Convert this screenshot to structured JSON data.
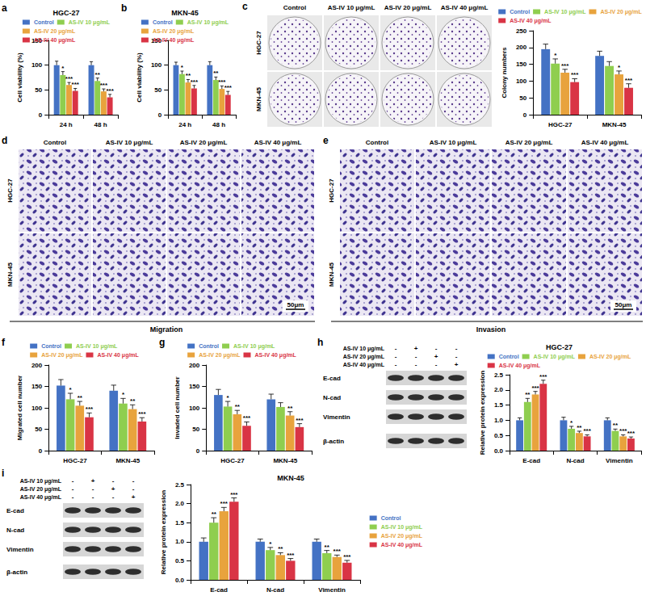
{
  "chart_data": [
    {
      "type": "bar",
      "panel": "a",
      "title": "HGC-27",
      "y_label": "Cell viability (%)",
      "categories": [
        "24 h",
        "48 h"
      ],
      "series": [
        {
          "name": "Control",
          "color": "#4472c4",
          "values": [
            100,
            100
          ],
          "errors": [
            8,
            7
          ],
          "significance": [
            null,
            null
          ]
        },
        {
          "name": "AS-IV 10 μg/mL",
          "color": "#8fce4f",
          "values": [
            80,
            68
          ],
          "errors": [
            7,
            6
          ],
          "significance": [
            "*",
            "**"
          ]
        },
        {
          "name": "AS-IV 20 μg/mL",
          "color": "#e8a33d",
          "values": [
            60,
            47
          ],
          "errors": [
            5,
            5
          ],
          "significance": [
            "***",
            "***"
          ]
        },
        {
          "name": "AS-IV 40 μg/mL",
          "color": "#d93445",
          "values": [
            48,
            35
          ],
          "errors": [
            5,
            6
          ],
          "significance": [
            "***",
            "***"
          ]
        }
      ],
      "ylim": [
        0,
        150
      ],
      "yticks": [
        0,
        50,
        100,
        150
      ],
      "grid": false,
      "legend": "top"
    },
    {
      "type": "bar",
      "panel": "b",
      "title": "MKN-45",
      "y_label": "Cell viability (%)",
      "categories": [
        "24 h",
        "48 h"
      ],
      "series": [
        {
          "name": "Control",
          "color": "#4472c4",
          "values": [
            100,
            100
          ],
          "errors": [
            6,
            7
          ],
          "significance": [
            null,
            null
          ]
        },
        {
          "name": "AS-IV 10 μg/mL",
          "color": "#8fce4f",
          "values": [
            82,
            70
          ],
          "errors": [
            6,
            6
          ],
          "significance": [
            "*",
            "**"
          ]
        },
        {
          "name": "AS-IV 20 μg/mL",
          "color": "#e8a33d",
          "values": [
            65,
            52
          ],
          "errors": [
            6,
            6
          ],
          "significance": [
            "**",
            "***"
          ]
        },
        {
          "name": "AS-IV 40 μg/mL",
          "color": "#d93445",
          "values": [
            53,
            40
          ],
          "errors": [
            6,
            7
          ],
          "significance": [
            "***",
            "***"
          ]
        }
      ],
      "ylim": [
        0,
        150
      ],
      "yticks": [
        0,
        50,
        100,
        150
      ],
      "grid": false,
      "legend": "top"
    },
    {
      "type": "bar",
      "y_label": "Colony numbers",
      "categories": [
        "HGC-27",
        "MKN-45"
      ],
      "series": [
        {
          "name": "Control",
          "color": "#4472c4",
          "values": [
            195,
            175
          ],
          "errors": [
            15,
            14
          ],
          "significance": [
            null,
            null
          ]
        },
        {
          "name": "AS-IV 10 μg/mL",
          "color": "#8fce4f",
          "values": [
            152,
            145
          ],
          "errors": [
            14,
            13
          ],
          "significance": [
            "*",
            null
          ]
        },
        {
          "name": "AS-IV 20 μg/mL",
          "color": "#e8a33d",
          "values": [
            125,
            120
          ],
          "errors": [
            10,
            10
          ],
          "significance": [
            "***",
            "*"
          ]
        },
        {
          "name": "AS-IV 40 μg/mL",
          "color": "#d93445",
          "values": [
            97,
            80
          ],
          "errors": [
            10,
            12
          ],
          "significance": [
            "***",
            "***"
          ]
        }
      ],
      "ylim": [
        0,
        250
      ],
      "yticks": [
        0,
        50,
        100,
        150,
        200,
        250
      ],
      "grid": false,
      "legend": "top"
    },
    {
      "type": "bar",
      "panel": "f",
      "y_label": "Migrated cell number",
      "categories": [
        "HGC-27",
        "MKN-45"
      ],
      "series": [
        {
          "name": "Control",
          "color": "#4472c4",
          "values": [
            152,
            140
          ],
          "errors": [
            14,
            13
          ],
          "significance": [
            null,
            null
          ]
        },
        {
          "name": "AS-IV 10 μg/mL",
          "color": "#8fce4f",
          "values": [
            120,
            110
          ],
          "errors": [
            14,
            12
          ],
          "significance": [
            "*",
            "*"
          ]
        },
        {
          "name": "AS-IV 20 μg/mL",
          "color": "#e8a33d",
          "values": [
            105,
            97
          ],
          "errors": [
            10,
            10
          ],
          "significance": [
            "**",
            "**"
          ]
        },
        {
          "name": "AS-IV 40 μg/mL",
          "color": "#d93445",
          "values": [
            78,
            68
          ],
          "errors": [
            10,
            9
          ],
          "significance": [
            "***",
            "***"
          ]
        }
      ],
      "ylim": [
        0,
        200
      ],
      "yticks": [
        0,
        50,
        100,
        150,
        200
      ],
      "grid": false,
      "legend": "top"
    },
    {
      "type": "bar",
      "panel": "g",
      "y_label": "Invaded cell number",
      "categories": [
        "HGC-27",
        "MKN-45"
      ],
      "series": [
        {
          "name": "Control",
          "color": "#4472c4",
          "values": [
            130,
            120
          ],
          "errors": [
            13,
            12
          ],
          "significance": [
            null,
            null
          ]
        },
        {
          "name": "AS-IV 10 μg/mL",
          "color": "#8fce4f",
          "values": [
            103,
            102
          ],
          "errors": [
            12,
            10
          ],
          "significance": [
            "*",
            null
          ]
        },
        {
          "name": "AS-IV 20 μg/mL",
          "color": "#e8a33d",
          "values": [
            85,
            82
          ],
          "errors": [
            9,
            9
          ],
          "significance": [
            "**",
            "**"
          ]
        },
        {
          "name": "AS-IV 40 μg/mL",
          "color": "#d93445",
          "values": [
            58,
            55
          ],
          "errors": [
            9,
            8
          ],
          "significance": [
            "***",
            "***"
          ]
        }
      ],
      "ylim": [
        0,
        200
      ],
      "yticks": [
        0,
        50,
        100,
        150,
        200
      ],
      "grid": false,
      "legend": "top"
    },
    {
      "type": "bar",
      "title": "HGC-27",
      "y_label": "Relative protein expression",
      "categories": [
        "E-cad",
        "N-cad",
        "Vimentin"
      ],
      "series": [
        {
          "name": "Control",
          "color": "#4472c4",
          "values": [
            1,
            1,
            1
          ],
          "errors": [
            0.08,
            0.1,
            0.08
          ],
          "significance": [
            null,
            null,
            null
          ]
        },
        {
          "name": "AS-IV 10 μg/mL",
          "color": "#8fce4f",
          "values": [
            1.6,
            0.72,
            0.65
          ],
          "errors": [
            0.12,
            0.08,
            0.06
          ],
          "significance": [
            "**",
            "*",
            "**"
          ]
        },
        {
          "name": "AS-IV 20 μg/mL",
          "color": "#e8a33d",
          "values": [
            1.85,
            0.58,
            0.47
          ],
          "errors": [
            0.1,
            0.06,
            0.05
          ],
          "significance": [
            "***",
            "**",
            "***"
          ]
        },
        {
          "name": "AS-IV 40 μg/mL",
          "color": "#d93445",
          "values": [
            2.2,
            0.47,
            0.4
          ],
          "errors": [
            0.12,
            0.05,
            0.05
          ],
          "significance": [
            "***",
            "***",
            "***"
          ]
        }
      ],
      "ylim": [
        0,
        2.5
      ],
      "yticks": [
        {
          "value": 0,
          "label": "0.0"
        },
        0.5,
        {
          "value": 1,
          "label": "1.0"
        },
        1.5,
        {
          "value": 2,
          "label": "2.0"
        },
        2.5
      ],
      "grid": false,
      "legend": "top"
    },
    {
      "type": "bar",
      "title": "MKN-45",
      "y_label": "Relative protein expression",
      "categories": [
        "E-cad",
        "N-cad",
        "Vimentin"
      ],
      "series": [
        {
          "name": "Control",
          "color": "#4472c4",
          "values": [
            1,
            1,
            1
          ],
          "errors": [
            0.1,
            0.07,
            0.07
          ],
          "significance": [
            null,
            null,
            null
          ]
        },
        {
          "name": "AS-IV 10 μg/mL",
          "color": "#8fce4f",
          "values": [
            1.5,
            0.78,
            0.7
          ],
          "errors": [
            0.13,
            0.07,
            0.07
          ],
          "significance": [
            "**",
            "*",
            "**"
          ]
        },
        {
          "name": "AS-IV 20 μg/mL",
          "color": "#e8a33d",
          "values": [
            1.8,
            0.65,
            0.6
          ],
          "errors": [
            0.1,
            0.06,
            0.05
          ],
          "significance": [
            "***",
            "**",
            "***"
          ]
        },
        {
          "name": "AS-IV 40 μg/mL",
          "color": "#d93445",
          "values": [
            2.05,
            0.5,
            0.45
          ],
          "errors": [
            0.1,
            0.06,
            0.06
          ],
          "significance": [
            "***",
            "***",
            "***"
          ]
        }
      ],
      "ylim": [
        0,
        2.5
      ],
      "yticks": [
        {
          "value": 0,
          "label": "0.0"
        },
        0.5,
        {
          "value": 1,
          "label": "1.0"
        },
        1.5,
        {
          "value": 2,
          "label": "2.0"
        },
        2.5
      ],
      "grid": false,
      "legend": "right"
    }
  ],
  "image_panels": [
    {
      "panel": "c",
      "columns": [
        "Control",
        "AS-IV 10 μg/mL",
        "AS-IV 20 μg/mL",
        "AS-IV 40 μg/mL"
      ],
      "rows": [
        "HGC-27",
        "MKN-45"
      ]
    },
    {
      "panel": "d",
      "columns": [
        "Control",
        "AS-IV 10 μg/mL",
        "AS-IV 20 μg/mL",
        "AS-IV 40 μg/mL"
      ],
      "rows": [
        "HGC-27",
        "MKN-45"
      ],
      "scale_bar": "50μm",
      "caption": "Migration"
    },
    {
      "panel": "e",
      "columns": [
        "Control",
        "AS-IV 10 μg/mL",
        "AS-IV 20 μg/mL",
        "AS-IV 40 μg/mL"
      ],
      "rows": [
        "HGC-27",
        "MKN-45"
      ],
      "scale_bar": "50μm",
      "caption": "Invasion"
    }
  ],
  "blots": [
    {
      "panel": "h",
      "treatments": [
        {
          "label": "AS-IV 10 μg/mL",
          "marks": [
            "-",
            "+",
            "-",
            "-"
          ]
        },
        {
          "label": "AS-IV 20 μg/mL",
          "marks": [
            "-",
            "-",
            "+",
            "-"
          ]
        },
        {
          "label": "AS-IV 40 μg/mL",
          "marks": [
            "-",
            "-",
            "-",
            "+"
          ]
        }
      ],
      "bands": [
        "E-cad",
        "N-cad",
        "Vimentin",
        "β-actin"
      ]
    },
    {
      "panel": "i",
      "treatments": [
        {
          "label": "AS-IV 10 μg/mL",
          "marks": [
            "-",
            "+",
            "-",
            "-"
          ]
        },
        {
          "label": "AS-IV 20 μg/mL",
          "marks": [
            "-",
            "-",
            "+",
            "-"
          ]
        },
        {
          "label": "AS-IV 40 μg/mL",
          "marks": [
            "-",
            "-",
            "-",
            "+"
          ]
        }
      ],
      "bands": [
        "E-cad",
        "N-cad",
        "Vimentin",
        "β-actin"
      ]
    }
  ]
}
